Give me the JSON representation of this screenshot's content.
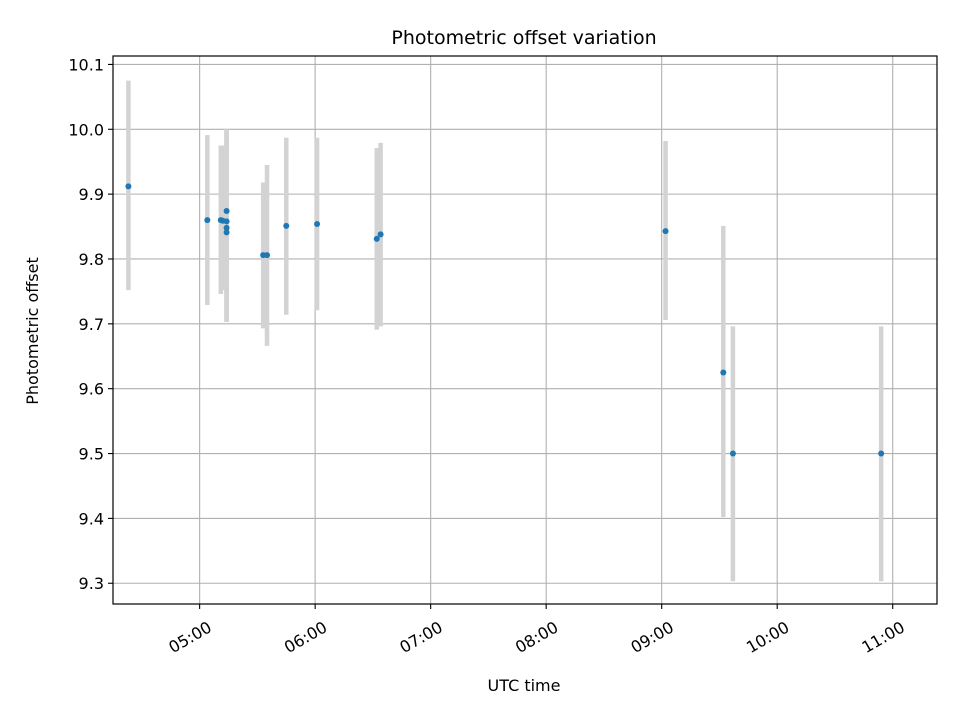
{
  "chart_data": {
    "type": "scatter",
    "title": "Photometric offset variation",
    "xlabel": "UTC time",
    "ylabel": "Photometric offset",
    "x_tick_labels": [
      "05:00",
      "06:00",
      "07:00",
      "08:00",
      "09:00",
      "10:00",
      "11:00"
    ],
    "x_ticks": [
      "05:00",
      "06:00",
      "07:00",
      "08:00",
      "09:00",
      "10:00",
      "11:00"
    ],
    "y_ticks": [
      9.3,
      9.4,
      9.5,
      9.6,
      9.7,
      9.8,
      9.9,
      10.0,
      10.1
    ],
    "y_tick_labels": [
      "9.3",
      "9.4",
      "9.5",
      "9.6",
      "9.7",
      "9.8",
      "9.9",
      "10.0",
      "10.1"
    ],
    "xlim": [
      "04:15",
      "11:23"
    ],
    "ylim": [
      9.268,
      10.113
    ],
    "grid": true,
    "colors": {
      "point": "#1f77b4",
      "errorbar": "#d3d3d3",
      "grid": "#b0b0b0"
    },
    "points": [
      {
        "x": "04:23",
        "y": 9.912,
        "ylow": 9.752,
        "yhigh": 10.075
      },
      {
        "x": "05:04",
        "y": 9.86,
        "ylow": 9.729,
        "yhigh": 9.991
      },
      {
        "x": "05:11",
        "y": 9.86,
        "ylow": 9.746,
        "yhigh": 9.975
      },
      {
        "x": "05:12",
        "y": 9.859,
        "ylow": 9.752,
        "yhigh": 9.975
      },
      {
        "x": "05:14",
        "y": 9.874,
        "ylow": 9.749,
        "yhigh": 10.0
      },
      {
        "x": "05:14",
        "y": 9.858,
        "ylow": 9.703,
        "yhigh": 9.998
      },
      {
        "x": "05:14",
        "y": 9.848,
        "ylow": 9.705,
        "yhigh": 9.997
      },
      {
        "x": "05:14",
        "y": 9.841,
        "ylow": 9.703,
        "yhigh": 9.997
      },
      {
        "x": "05:33",
        "y": 9.806,
        "ylow": 9.693,
        "yhigh": 9.918
      },
      {
        "x": "05:35",
        "y": 9.806,
        "ylow": 9.666,
        "yhigh": 9.945
      },
      {
        "x": "05:45",
        "y": 9.851,
        "ylow": 9.714,
        "yhigh": 9.987
      },
      {
        "x": "06:01",
        "y": 9.854,
        "ylow": 9.721,
        "yhigh": 9.987
      },
      {
        "x": "06:32",
        "y": 9.831,
        "ylow": 9.691,
        "yhigh": 9.971
      },
      {
        "x": "06:34",
        "y": 9.838,
        "ylow": 9.696,
        "yhigh": 9.979
      },
      {
        "x": "09:02",
        "y": 9.843,
        "ylow": 9.706,
        "yhigh": 9.982
      },
      {
        "x": "09:32",
        "y": 9.625,
        "ylow": 9.402,
        "yhigh": 9.851
      },
      {
        "x": "09:37",
        "y": 9.5,
        "ylow": 9.303,
        "yhigh": 9.696
      },
      {
        "x": "10:54",
        "y": 9.5,
        "ylow": 9.303,
        "yhigh": 9.696
      }
    ]
  }
}
